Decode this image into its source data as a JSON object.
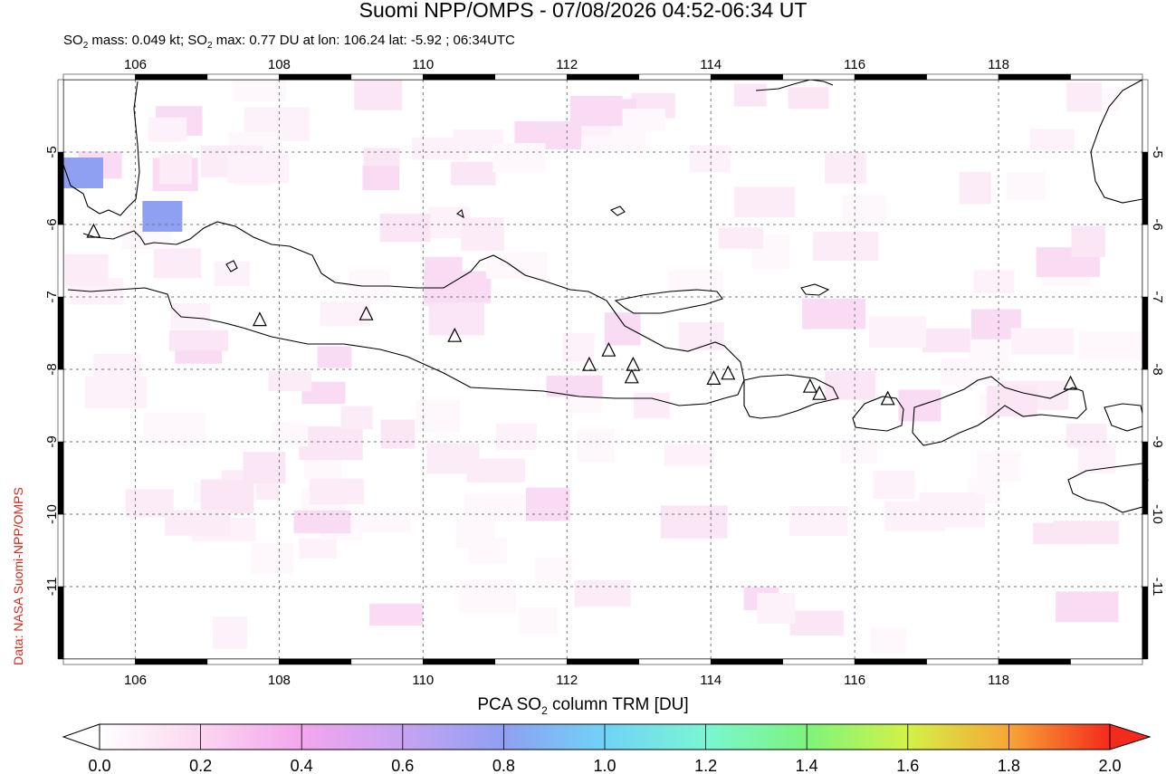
{
  "header": {
    "title": "Suomi NPP/OMPS - 07/08/2026 04:52-06:34 UT",
    "stats": {
      "mass_label_pre": "SO",
      "mass_label_sub": "2",
      "mass_text": " mass: 0.049 kt; ",
      "max_label_pre": "SO",
      "max_label_sub": "2",
      "max_text": " max: 0.77 DU at lon: 106.24 lat: -5.92 ; 06:34UTC"
    }
  },
  "credit": "Data: NASA Suomi-NPP/OMPS",
  "map": {
    "lon_range": [
      105,
      120
    ],
    "lat_range": [
      -12,
      -4
    ],
    "lon_ticks": [
      "106",
      "108",
      "110",
      "112",
      "114",
      "116",
      "118"
    ],
    "lat_ticks": [
      "-5",
      "-6",
      "-7",
      "-8",
      "-9",
      "-10",
      "-11"
    ],
    "grid": "dashed",
    "volcano_marker": "triangle-icon",
    "volcanoes": [
      [
        105.42,
        -6.1
      ],
      [
        107.73,
        -7.32
      ],
      [
        109.21,
        -7.24
      ],
      [
        110.44,
        -7.54
      ],
      [
        112.31,
        -7.94
      ],
      [
        112.58,
        -7.74
      ],
      [
        112.92,
        -7.94
      ],
      [
        112.9,
        -8.11
      ],
      [
        114.04,
        -8.13
      ],
      [
        114.24,
        -8.06
      ],
      [
        115.38,
        -8.24
      ],
      [
        115.51,
        -8.34
      ],
      [
        116.46,
        -8.41
      ],
      [
        119.0,
        -8.2
      ]
    ],
    "so2_max_cells": [
      {
        "lon": 105.1,
        "lat": -5.3,
        "value": 0.7
      },
      {
        "lon": 106.2,
        "lat": -5.9,
        "value": 0.77
      }
    ]
  },
  "colorbar": {
    "title_pre": "PCA SO",
    "title_sub": "2",
    "title_post": " column TRM [DU]",
    "ticks": [
      "0.0",
      "0.2",
      "0.4",
      "0.6",
      "0.8",
      "1.0",
      "1.2",
      "1.4",
      "1.6",
      "1.8",
      "2.0"
    ],
    "range": [
      0,
      2
    ],
    "colors": [
      "#ffffff",
      "#fbd6f0",
      "#f3a6ee",
      "#c8a3f2",
      "#8f9ff2",
      "#6fd3f6",
      "#7af6d3",
      "#7cf47c",
      "#d3f247",
      "#f6a636",
      "#f42a1c"
    ]
  }
}
